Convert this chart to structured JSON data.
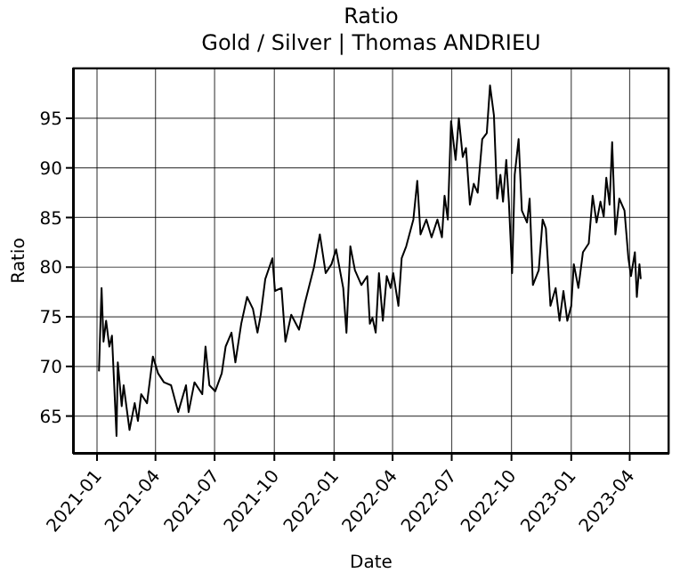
{
  "chart_data": {
    "type": "line",
    "title": "Ratio",
    "subtitle": "Gold / Silver | Thomas ANDRIEU",
    "xlabel": "Date",
    "ylabel": "Ratio",
    "x": [
      "2021-01-04",
      "2021-01-08",
      "2021-01-11",
      "2021-01-15",
      "2021-01-20",
      "2021-01-24",
      "2021-01-31",
      "2021-02-02",
      "2021-02-08",
      "2021-02-11",
      "2021-02-20",
      "2021-02-28",
      "2021-03-05",
      "2021-03-10",
      "2021-03-19",
      "2021-03-28",
      "2021-04-05",
      "2021-04-14",
      "2021-04-25",
      "2021-05-06",
      "2021-05-18",
      "2021-05-22",
      "2021-05-31",
      "2021-06-12",
      "2021-06-17",
      "2021-06-23",
      "2021-07-02",
      "2021-07-12",
      "2021-07-18",
      "2021-07-27",
      "2021-08-02",
      "2021-08-11",
      "2021-08-20",
      "2021-08-29",
      "2021-09-05",
      "2021-09-10",
      "2021-09-17",
      "2021-09-28",
      "2021-10-02",
      "2021-10-12",
      "2021-10-18",
      "2021-10-27",
      "2021-11-08",
      "2021-11-17",
      "2021-12-01",
      "2021-12-10",
      "2021-12-19",
      "2021-12-28",
      "2022-01-04",
      "2022-01-15",
      "2022-01-20",
      "2022-01-26",
      "2022-02-02",
      "2022-02-12",
      "2022-02-21",
      "2022-02-25",
      "2022-03-01",
      "2022-03-06",
      "2022-03-11",
      "2022-03-17",
      "2022-03-23",
      "2022-03-29",
      "2022-04-02",
      "2022-04-10",
      "2022-04-15",
      "2022-04-22",
      "2022-05-03",
      "2022-05-09",
      "2022-05-14",
      "2022-05-23",
      "2022-05-31",
      "2022-06-09",
      "2022-06-16",
      "2022-06-20",
      "2022-06-25",
      "2022-06-30",
      "2022-07-07",
      "2022-07-12",
      "2022-07-18",
      "2022-07-23",
      "2022-07-29",
      "2022-08-04",
      "2022-08-10",
      "2022-08-17",
      "2022-08-24",
      "2022-08-29",
      "2022-09-04",
      "2022-09-09",
      "2022-09-14",
      "2022-09-18",
      "2022-09-23",
      "2022-09-27",
      "2022-10-02",
      "2022-10-06",
      "2022-10-12",
      "2022-10-17",
      "2022-10-25",
      "2022-10-29",
      "2022-11-03",
      "2022-11-12",
      "2022-11-18",
      "2022-11-23",
      "2022-11-30",
      "2022-12-08",
      "2022-12-14",
      "2022-12-20",
      "2022-12-26",
      "2023-01-01",
      "2023-01-05",
      "2023-01-12",
      "2023-01-19",
      "2023-01-28",
      "2023-02-03",
      "2023-02-09",
      "2023-02-15",
      "2023-02-20",
      "2023-02-24",
      "2023-03-01",
      "2023-03-05",
      "2023-03-10",
      "2023-03-16",
      "2023-03-24",
      "2023-03-30",
      "2023-04-03",
      "2023-04-09",
      "2023-04-12",
      "2023-04-16",
      "2023-04-18"
    ],
    "series": [
      {
        "color": "#000000",
        "values": [
          69.5,
          77.9,
          72.5,
          74.6,
          72,
          73.1,
          63,
          70.4,
          66,
          68.1,
          63.6,
          66.3,
          64.5,
          67.2,
          66.3,
          71,
          69.3,
          68.4,
          68.1,
          65.4,
          68.1,
          65.4,
          68.4,
          67.2,
          72,
          68.1,
          67.5,
          69.3,
          72,
          73.4,
          70.4,
          74.3,
          77,
          75.8,
          73.4,
          75.2,
          78.8,
          80.9,
          77.6,
          77.9,
          72.5,
          75.2,
          73.7,
          76.4,
          80,
          83.3,
          79.4,
          80.3,
          81.8,
          77.9,
          73.4,
          82.1,
          79.7,
          78.2,
          79.1,
          74.3,
          74.9,
          73.4,
          79.4,
          74.6,
          79.1,
          77.9,
          79.4,
          76.1,
          80.9,
          82.1,
          84.8,
          88.7,
          83.3,
          84.8,
          83,
          84.8,
          83,
          87.2,
          84.8,
          94.7,
          90.8,
          95,
          91.1,
          92,
          86.3,
          88.4,
          87.5,
          92.9,
          93.5,
          98.3,
          95.3,
          86.9,
          89.3,
          86.6,
          90.8,
          86.6,
          79.4,
          89.3,
          92.9,
          85.7,
          84.5,
          86.9,
          78.2,
          79.7,
          84.8,
          83.9,
          76.1,
          77.9,
          74.6,
          77.6,
          74.6,
          76.1,
          80.3,
          77.9,
          81.5,
          82.4,
          87.2,
          84.5,
          86.6,
          85.1,
          89,
          86.3,
          92.6,
          83.3,
          86.9,
          85.7,
          80.9,
          79.1,
          81.5,
          77,
          80.3,
          78.8
        ]
      }
    ],
    "xlim": [
      "2020-11-25",
      "2023-06-01"
    ],
    "xticks": [
      "2021-01",
      "2021-04",
      "2021-07",
      "2021-10",
      "2022-01",
      "2022-04",
      "2022-07",
      "2022-10",
      "2023-01",
      "2023-04"
    ],
    "ylim": [
      61.2,
      100.1
    ],
    "yticks": [
      65,
      70,
      75,
      80,
      85,
      90,
      95
    ],
    "grid": true,
    "legend": false,
    "marker": "none",
    "line_style": "solid"
  }
}
